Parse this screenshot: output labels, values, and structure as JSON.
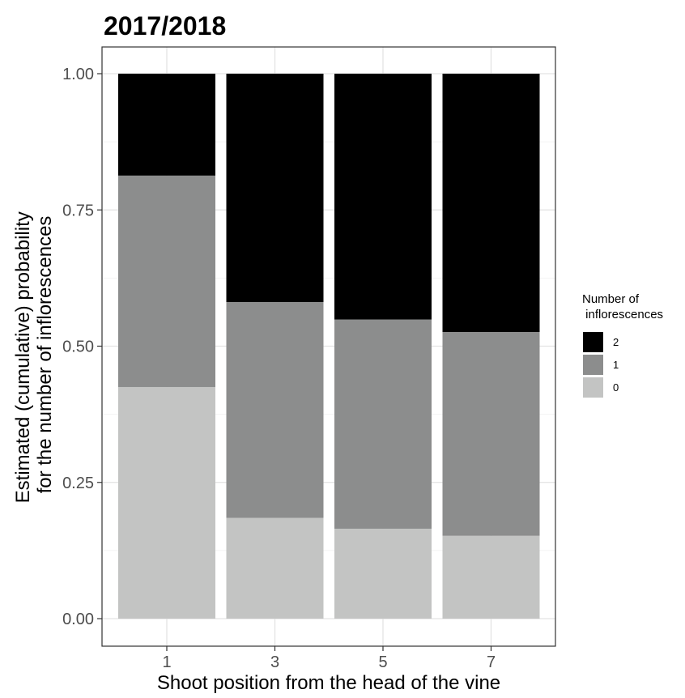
{
  "chart_data": {
    "type": "bar",
    "stacked": true,
    "title": "2017/2018",
    "xlabel": "Shoot position from the head of the vine",
    "ylabel_lines": [
      "Estimated (cumulative) probability",
      "for the number of inflorescences"
    ],
    "categories": [
      "1",
      "3",
      "5",
      "7"
    ],
    "ylim": [
      0,
      1
    ],
    "y_ticks": [
      "0.00",
      "0.25",
      "0.50",
      "0.75",
      "1.00"
    ],
    "grid": true,
    "legend_position": "right",
    "legend_title_lines": [
      "Number of",
      " inflorescences"
    ],
    "series": [
      {
        "name": "0",
        "color": "#c3c4c3",
        "values": [
          0.425,
          0.185,
          0.165,
          0.152
        ]
      },
      {
        "name": "1",
        "color": "#8c8d8d",
        "values": [
          0.388,
          0.396,
          0.384,
          0.374
        ]
      },
      {
        "name": "2",
        "color": "#000000",
        "values": [
          0.187,
          0.419,
          0.451,
          0.474
        ]
      }
    ],
    "legend_order": [
      "2",
      "1",
      "0"
    ]
  }
}
